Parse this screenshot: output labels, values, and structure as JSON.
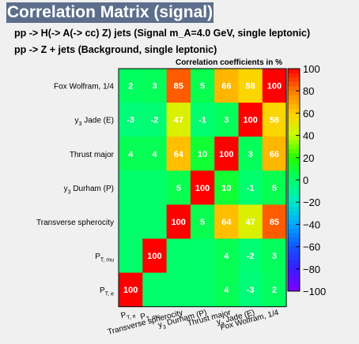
{
  "header": {
    "title": "Correlation Matrix (signal)",
    "subtitle_1": "pp -> H(-> A(-> cc)  Z) jets (Signal m_A=4.0 GeV, single leptonic)",
    "subtitle_2": "pp -> Z + jets (Background, single leptonic)"
  },
  "chart_data": {
    "type": "heatmap",
    "title": "Correlation coefficients in %",
    "variables": [
      "P_{T, e}",
      "P_{T, mu}",
      "Transverse spherocity",
      "y_{3} Durham (P)",
      "Thrust major",
      "y_{3} Jade (E)",
      "Fox Wolfram, 1/4"
    ],
    "y_labels_top_to_bottom": [
      "Fox Wolfram, 1/4",
      "y_{3} Jade (E)",
      "Thrust major",
      "y_{3} Durham (P)",
      "Transverse spherocity",
      "P_{T, mu}",
      "P_{T, e}"
    ],
    "x_labels_left_to_right": [
      "P_{T, e}",
      "P_{T, mu}",
      "Transverse spherocity",
      "y_{3} Durham (P)",
      "Thrust major",
      "y_{3} Jade (E)",
      "Fox Wolfram, 1/4"
    ],
    "matrix_rows_top_to_bottom": [
      [
        2,
        3,
        85,
        5,
        66,
        58,
        100
      ],
      [
        -3,
        -2,
        47,
        -1,
        3,
        100,
        58
      ],
      [
        4,
        4,
        64,
        10,
        100,
        3,
        66
      ],
      [
        null,
        null,
        5,
        100,
        10,
        -1,
        5
      ],
      [
        null,
        null,
        100,
        5,
        64,
        47,
        85
      ],
      [
        null,
        100,
        null,
        null,
        4,
        -2,
        3
      ],
      [
        100,
        null,
        null,
        null,
        4,
        -3,
        2
      ]
    ],
    "zlim": [
      -100,
      100
    ],
    "colorbar_ticks": [
      "100",
      "80",
      "60",
      "40",
      "20",
      "0",
      "−20",
      "−40",
      "−60",
      "−80",
      "−100"
    ],
    "colorbar_tick_values": [
      100,
      80,
      60,
      40,
      20,
      0,
      -20,
      -40,
      -60,
      -80,
      -100
    ],
    "legend": "colorbar right",
    "grid": false
  }
}
